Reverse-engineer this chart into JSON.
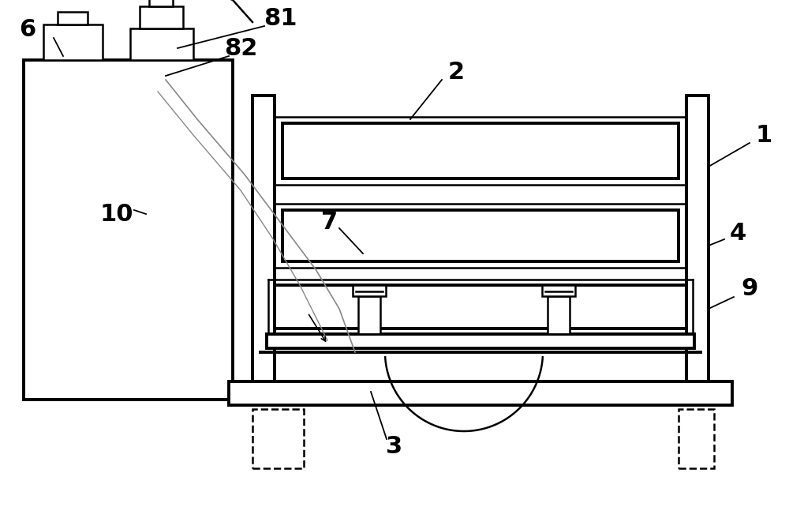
{
  "bg_color": "#ffffff",
  "line_color": "#000000",
  "lw": 1.8,
  "tlw": 2.8,
  "fig_width": 10.0,
  "fig_height": 6.61
}
